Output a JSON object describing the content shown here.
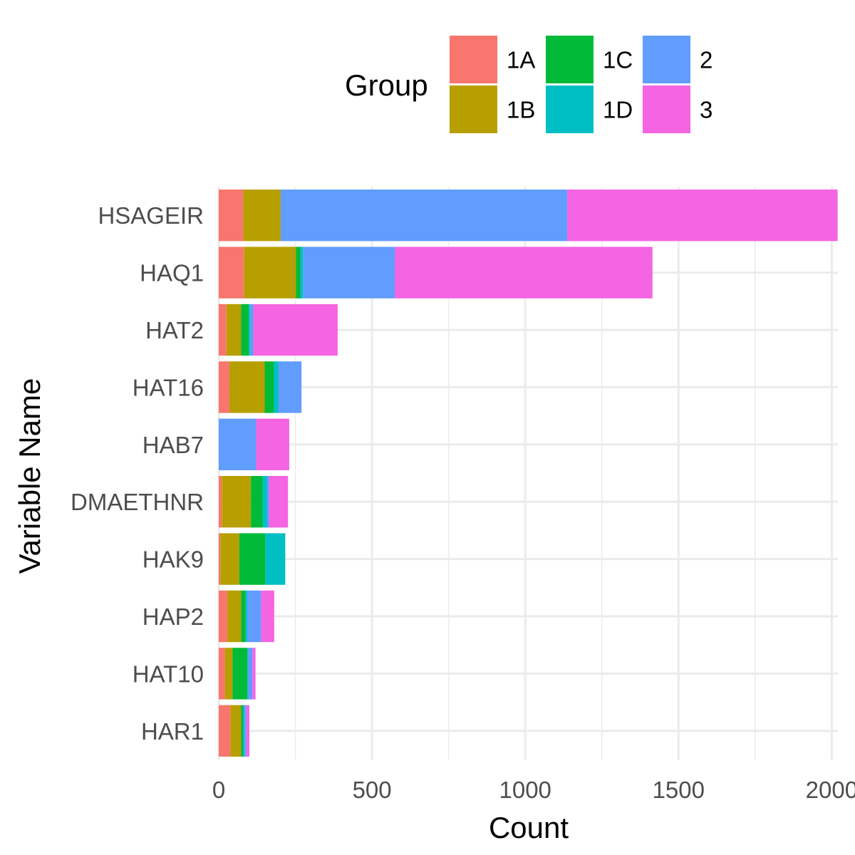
{
  "chart_data": {
    "type": "bar",
    "orientation": "horizontal",
    "stacked": true,
    "xlabel": "Count",
    "ylabel": "Variable Name",
    "xlim": [
      0,
      2020
    ],
    "x_ticks": [
      0,
      500,
      1000,
      1500,
      2000
    ],
    "x_tick_labels": [
      "0",
      "500",
      "1000",
      "1500",
      "2000"
    ],
    "grid": true,
    "legend": {
      "title": "Group",
      "position": "top"
    },
    "categories": [
      "HSAGEIR",
      "HAQ1",
      "HAT2",
      "HAT16",
      "HAB7",
      "DMAETHNR",
      "HAK9",
      "HAP2",
      "HAT10",
      "HAR1"
    ],
    "series": [
      {
        "name": "1A",
        "color": "#F8766D",
        "values": [
          80,
          82,
          25,
          35,
          0,
          10,
          5,
          28,
          20,
          38
        ]
      },
      {
        "name": "1B",
        "color": "#B79F00",
        "values": [
          122,
          170,
          48,
          115,
          0,
          95,
          62,
          45,
          25,
          35
        ]
      },
      {
        "name": "1C",
        "color": "#00BA38",
        "values": [
          0,
          15,
          25,
          30,
          0,
          38,
          85,
          15,
          48,
          6
        ]
      },
      {
        "name": "1D",
        "color": "#00BFC4",
        "values": [
          0,
          8,
          5,
          15,
          0,
          15,
          65,
          5,
          2,
          5
        ]
      },
      {
        "name": "2",
        "color": "#619CFF",
        "values": [
          935,
          300,
          10,
          75,
          122,
          6,
          0,
          45,
          15,
          6
        ]
      },
      {
        "name": "3",
        "color": "#F564E3",
        "values": [
          882,
          840,
          275,
          0,
          108,
          62,
          0,
          43,
          10,
          10
        ]
      }
    ]
  }
}
